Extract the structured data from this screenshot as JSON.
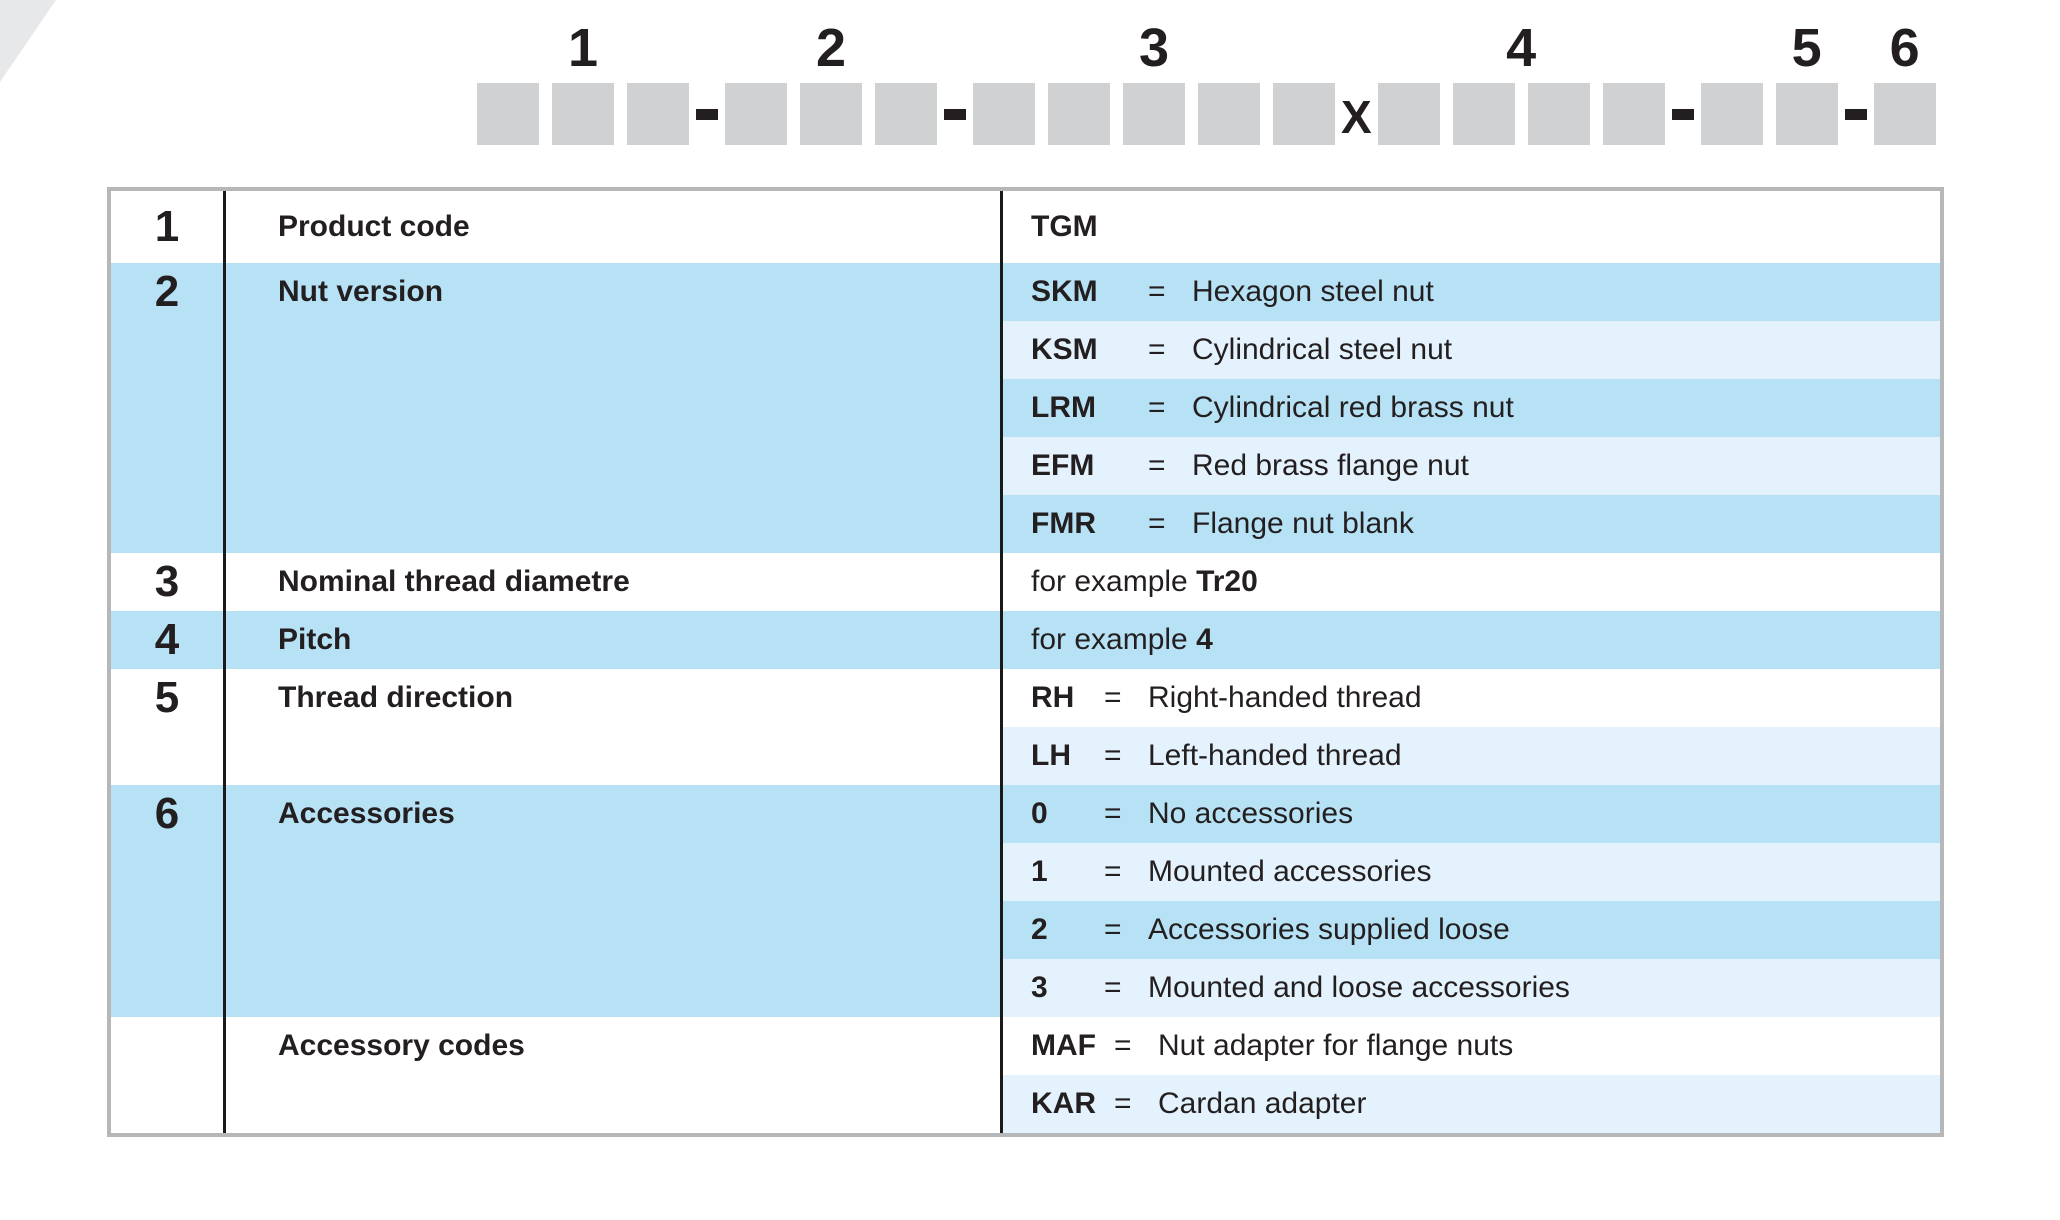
{
  "colors": {
    "group_blue": "#b7e2f6",
    "row_light_blue": "#e3f2fc",
    "diagram_box_gray": "#d0d1d2",
    "table_border_gray": "#b5b7b9",
    "divider_black": "#1a1a1a",
    "text": "#231f20"
  },
  "diagram": {
    "x_char": "X",
    "dash_char": "-",
    "groups": [
      {
        "label": "1",
        "boxes": 3,
        "label_box": 1,
        "separator_after": "dash"
      },
      {
        "label": "2",
        "boxes": 3,
        "label_box": 1,
        "separator_after": "dash"
      },
      {
        "label": "3",
        "boxes": 5,
        "label_box": "center",
        "separator_after": "x"
      },
      {
        "label": "4",
        "boxes": 4,
        "label_box": "center",
        "separator_after": "dash"
      },
      {
        "label": "5",
        "boxes": 2,
        "label_box": 1,
        "separator_after": "dash"
      },
      {
        "label": "6",
        "boxes": 1,
        "label_box": 0,
        "separator_after": null
      }
    ]
  },
  "table": {
    "groups": [
      {
        "num": "1",
        "label": "Product code",
        "tone": "white",
        "code_col": "wide",
        "rows": [
          {
            "code": "TGM",
            "eq": false,
            "text": "",
            "tone": "white"
          }
        ]
      },
      {
        "num": "2",
        "label": "Nut version",
        "tone": "blue",
        "code_col": "wide",
        "rows": [
          {
            "code": "SKM",
            "eq": true,
            "text": "Hexagon steel nut",
            "tone": "blue"
          },
          {
            "code": "KSM",
            "eq": true,
            "text": "Cylindrical steel nut",
            "tone": "light"
          },
          {
            "code": "LRM",
            "eq": true,
            "text": "Cylindrical red brass nut",
            "tone": "blue"
          },
          {
            "code": "EFM",
            "eq": true,
            "text": "Red brass flange nut",
            "tone": "light"
          },
          {
            "code": "FMR",
            "eq": true,
            "text": "Flange nut blank",
            "tone": "blue"
          }
        ]
      },
      {
        "num": "3",
        "label": "Nominal thread diametre",
        "tone": "white",
        "code_col": "wide",
        "rows": [
          {
            "prefix": "for example ",
            "bold": "Tr20",
            "tone": "white"
          }
        ]
      },
      {
        "num": "4",
        "label": "Pitch",
        "tone": "blue",
        "code_col": "wide",
        "rows": [
          {
            "prefix": "for example ",
            "bold": "4",
            "tone": "blue"
          }
        ]
      },
      {
        "num": "5",
        "label": "Thread direction",
        "tone": "white",
        "code_col": "narrow",
        "rows": [
          {
            "code": "RH",
            "eq": true,
            "text": "Right-handed thread",
            "tone": "white"
          },
          {
            "code": "LH",
            "eq": true,
            "text": "Left-handed thread",
            "tone": "light"
          }
        ]
      },
      {
        "num": "6",
        "label": "Accessories",
        "tone": "blue",
        "code_col": "narrow",
        "rows": [
          {
            "code": "0",
            "eq": true,
            "text": "No accessories",
            "tone": "blue"
          },
          {
            "code": "1",
            "eq": true,
            "text": "Mounted accessories",
            "tone": "light"
          },
          {
            "code": "2",
            "eq": true,
            "text": "Accessories supplied loose",
            "tone": "blue"
          },
          {
            "code": "3",
            "eq": true,
            "text": "Mounted and loose accessories",
            "tone": "light"
          }
        ]
      },
      {
        "num": "",
        "label": "Accessory codes",
        "tone": "white",
        "code_col": "mid",
        "rows": [
          {
            "code": "MAF",
            "eq": true,
            "text": "Nut adapter for flange nuts",
            "tone": "white"
          },
          {
            "code": "KAR",
            "eq": true,
            "text": "Cardan adapter",
            "tone": "light"
          }
        ]
      }
    ]
  }
}
